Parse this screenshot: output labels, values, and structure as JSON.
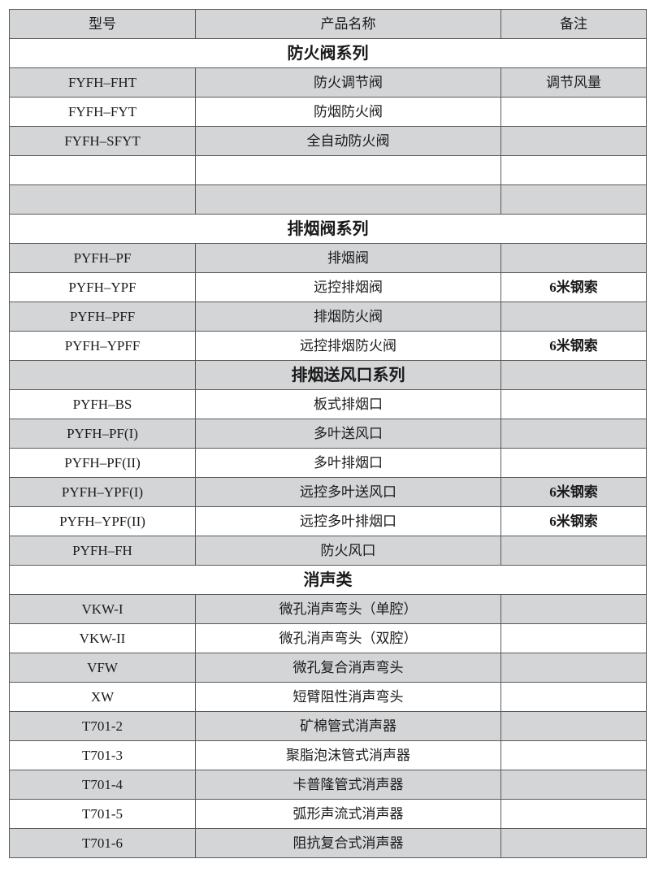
{
  "header": {
    "model": "型号",
    "name": "产品名称",
    "note": "备注"
  },
  "rows": [
    {
      "type": "section",
      "span": "full",
      "shade": "white",
      "title": "防火阀系列"
    },
    {
      "type": "item",
      "shade": "gray",
      "model": "FYFH–FHT",
      "name": "防火调节阀",
      "note": "调节风量"
    },
    {
      "type": "item",
      "shade": "white",
      "model": "FYFH–FYT",
      "name": "防烟防火阀",
      "note": ""
    },
    {
      "type": "item",
      "shade": "gray",
      "model": "FYFH–SFYT",
      "name": "全自动防火阀",
      "note": ""
    },
    {
      "type": "item",
      "shade": "white",
      "model": "",
      "name": "",
      "note": ""
    },
    {
      "type": "item",
      "shade": "gray",
      "model": "",
      "name": "",
      "note": ""
    },
    {
      "type": "section",
      "span": "full",
      "shade": "white",
      "title": "排烟阀系列"
    },
    {
      "type": "item",
      "shade": "gray",
      "model": "PYFH–PF",
      "name": "排烟阀",
      "note": ""
    },
    {
      "type": "item",
      "shade": "white",
      "model": "PYFH–YPF",
      "name": "远控排烟阀",
      "note": "6米钢索"
    },
    {
      "type": "item",
      "shade": "gray",
      "model": "PYFH–PFF",
      "name": "排烟防火阀",
      "note": ""
    },
    {
      "type": "item",
      "shade": "white",
      "model": "PYFH–YPFF",
      "name": "远控排烟防火阀",
      "note": "6米钢索"
    },
    {
      "type": "section",
      "span": "middle",
      "shade": "gray",
      "title": "排烟送风口系列"
    },
    {
      "type": "item",
      "shade": "white",
      "model": "PYFH–BS",
      "name": "板式排烟口",
      "note": ""
    },
    {
      "type": "item",
      "shade": "gray",
      "model": "PYFH–PF(I)",
      "name": "多叶送风口",
      "note": ""
    },
    {
      "type": "item",
      "shade": "white",
      "model": "PYFH–PF(II)",
      "name": "多叶排烟口",
      "note": ""
    },
    {
      "type": "item",
      "shade": "gray",
      "model": "PYFH–YPF(I)",
      "name": "远控多叶送风口",
      "note": "6米钢索"
    },
    {
      "type": "item",
      "shade": "white",
      "model": "PYFH–YPF(II)",
      "name": "远控多叶排烟口",
      "note": "6米钢索"
    },
    {
      "type": "item",
      "shade": "gray",
      "model": "PYFH–FH",
      "name": "防火风口",
      "note": ""
    },
    {
      "type": "section",
      "span": "full",
      "shade": "white",
      "title": "消声类"
    },
    {
      "type": "item",
      "shade": "gray",
      "model": "VKW-I",
      "name": "微孔消声弯头（单腔）",
      "note": ""
    },
    {
      "type": "item",
      "shade": "white",
      "model": "VKW-II",
      "name": "微孔消声弯头（双腔）",
      "note": ""
    },
    {
      "type": "item",
      "shade": "gray",
      "model": "VFW",
      "name": "微孔复合消声弯头",
      "note": ""
    },
    {
      "type": "item",
      "shade": "white",
      "model": "XW",
      "name": "短臂阻性消声弯头",
      "note": ""
    },
    {
      "type": "item",
      "shade": "gray",
      "model": "T701-2",
      "name": "矿棉管式消声器",
      "note": ""
    },
    {
      "type": "item",
      "shade": "white",
      "model": "T701-3",
      "name": "聚脂泡沫管式消声器",
      "note": ""
    },
    {
      "type": "item",
      "shade": "gray",
      "model": "T701-4",
      "name": "卡普隆管式消声器",
      "note": ""
    },
    {
      "type": "item",
      "shade": "white",
      "model": "T701-5",
      "name": "弧形声流式消声器",
      "note": ""
    },
    {
      "type": "item",
      "shade": "gray",
      "model": "T701-6",
      "name": "阻抗复合式消声器",
      "note": ""
    }
  ]
}
